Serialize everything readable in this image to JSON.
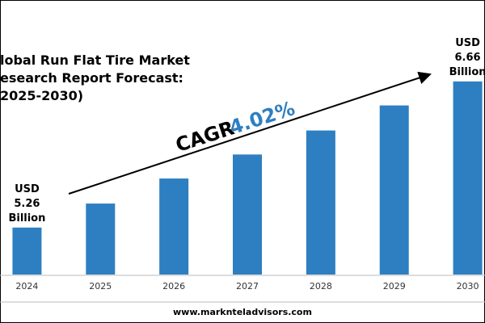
{
  "chart_data": {
    "type": "bar",
    "title_lines": [
      "lobal Run Flat Tire Market",
      "esearch Report Forecast:",
      "2025-2030)"
    ],
    "categories": [
      "2024",
      "2025",
      "2026",
      "2027",
      "2028",
      "2029",
      "2030"
    ],
    "values": [
      5.26,
      5.49,
      5.73,
      5.96,
      6.19,
      6.43,
      6.66
    ],
    "value_labels": [
      "USD 5.26 Billion",
      null,
      null,
      null,
      null,
      null,
      "USD 6.66 Billion"
    ],
    "color": "#2e7fc1",
    "ylim": [
      4.81,
      7.44
    ],
    "cagr_label": "CAGR",
    "cagr_value": "4.02%",
    "cagr_color": "#2e7fc1",
    "footer": "www.marknteladvisors.com"
  }
}
